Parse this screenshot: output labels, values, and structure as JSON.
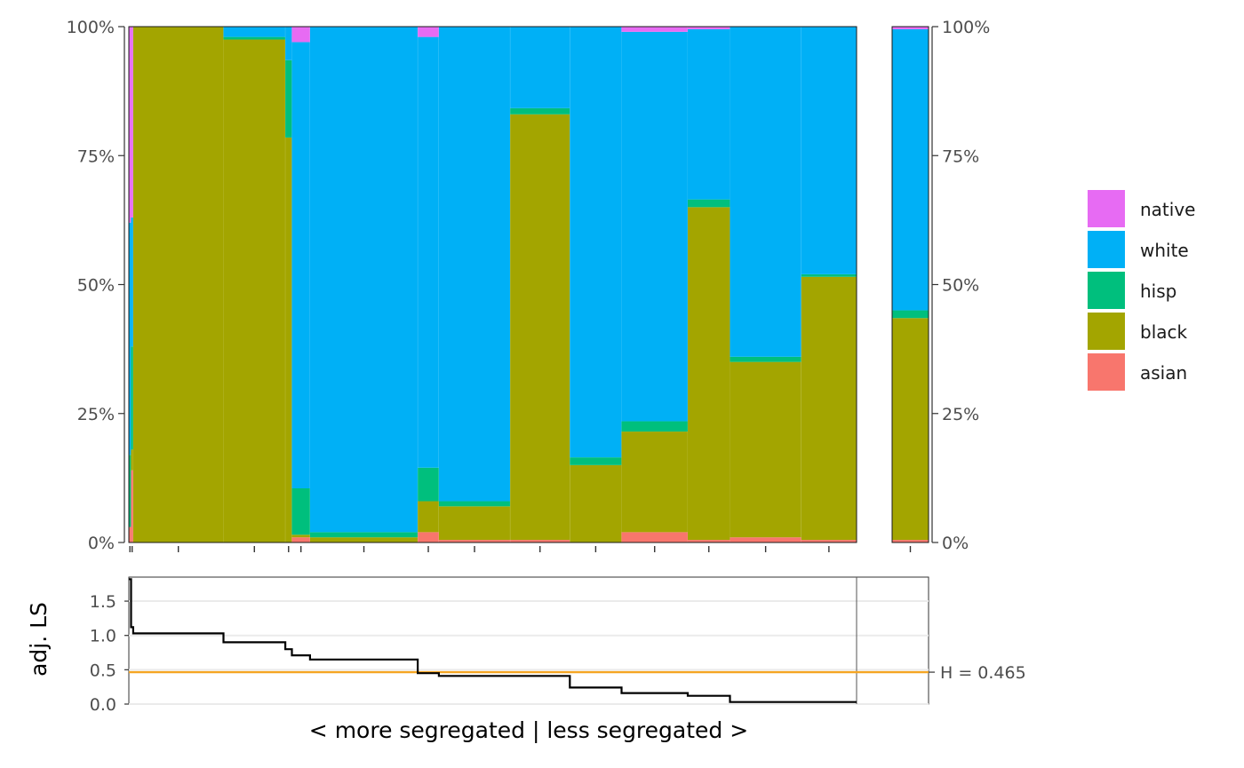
{
  "chart_data": [
    {
      "type": "bar",
      "subtype": "stacked-proportion-mosaic",
      "title": "",
      "xlabel": "",
      "ylabel": "",
      "ylim": [
        0,
        1
      ],
      "y_tick_labels": [
        "0%",
        "25%",
        "50%",
        "75%",
        "100%"
      ],
      "y_ticks": [
        0,
        0.25,
        0.5,
        0.75,
        1
      ],
      "grid": false,
      "legend_position": "right",
      "stack_order": [
        "asian",
        "black",
        "hisp",
        "white",
        "native"
      ],
      "legend": [
        {
          "label": "native",
          "color": "#E76BF3"
        },
        {
          "label": "white",
          "color": "#00B0F6"
        },
        {
          "label": "hisp",
          "color": "#00BF7D"
        },
        {
          "label": "black",
          "color": "#A3A500"
        },
        {
          "label": "asian",
          "color": "#F8766D"
        }
      ],
      "x_extent": [
        0,
        1
      ],
      "units": [
        {
          "x0": 0.0,
          "x1": 0.003,
          "values": {
            "asian": 0.03,
            "black": 0.0,
            "hisp": 0.14,
            "white": 0.45,
            "native": 0.38
          }
        },
        {
          "x0": 0.003,
          "x1": 0.006,
          "values": {
            "asian": 0.14,
            "black": 0.04,
            "hisp": 0.2,
            "white": 0.25,
            "native": 0.37
          }
        },
        {
          "x0": 0.006,
          "x1": 0.13,
          "values": {
            "asian": 0.0,
            "black": 1.0,
            "hisp": 0.0,
            "white": 0.0,
            "native": 0.0
          }
        },
        {
          "x0": 0.13,
          "x1": 0.215,
          "values": {
            "asian": 0.0,
            "black": 0.975,
            "hisp": 0.005,
            "white": 0.02,
            "native": 0.0
          }
        },
        {
          "x0": 0.215,
          "x1": 0.224,
          "values": {
            "asian": 0.0,
            "black": 0.785,
            "hisp": 0.15,
            "white": 0.065,
            "native": 0.0
          }
        },
        {
          "x0": 0.224,
          "x1": 0.249,
          "values": {
            "asian": 0.01,
            "black": 0.005,
            "hisp": 0.09,
            "white": 0.865,
            "native": 0.03
          }
        },
        {
          "x0": 0.249,
          "x1": 0.397,
          "values": {
            "asian": 0.0,
            "black": 0.01,
            "hisp": 0.01,
            "white": 0.98,
            "native": 0.0
          }
        },
        {
          "x0": 0.397,
          "x1": 0.426,
          "values": {
            "asian": 0.02,
            "black": 0.06,
            "hisp": 0.065,
            "white": 0.835,
            "native": 0.02
          }
        },
        {
          "x0": 0.426,
          "x1": 0.524,
          "values": {
            "asian": 0.005,
            "black": 0.065,
            "hisp": 0.01,
            "white": 0.92,
            "native": 0.0
          }
        },
        {
          "x0": 0.524,
          "x1": 0.606,
          "values": {
            "asian": 0.005,
            "black": 0.825,
            "hisp": 0.012,
            "white": 0.158,
            "native": 0.0
          }
        },
        {
          "x0": 0.606,
          "x1": 0.677,
          "values": {
            "asian": 0.0,
            "black": 0.15,
            "hisp": 0.015,
            "white": 0.835,
            "native": 0.0
          }
        },
        {
          "x0": 0.677,
          "x1": 0.768,
          "values": {
            "asian": 0.02,
            "black": 0.195,
            "hisp": 0.02,
            "white": 0.755,
            "native": 0.01
          }
        },
        {
          "x0": 0.768,
          "x1": 0.826,
          "values": {
            "asian": 0.005,
            "black": 0.645,
            "hisp": 0.015,
            "white": 0.33,
            "native": 0.005
          }
        },
        {
          "x0": 0.826,
          "x1": 0.924,
          "values": {
            "asian": 0.01,
            "black": 0.34,
            "hisp": 0.01,
            "white": 0.64,
            "native": 0.0
          }
        },
        {
          "x0": 0.924,
          "x1": 1.0,
          "values": {
            "asian": 0.005,
            "black": 0.51,
            "hisp": 0.005,
            "white": 0.48,
            "native": 0.0
          }
        }
      ],
      "total_bar": {
        "label": "",
        "values": {
          "asian": 0.005,
          "black": 0.43,
          "hisp": 0.015,
          "white": 0.545,
          "native": 0.005
        }
      }
    },
    {
      "type": "line",
      "subtype": "step",
      "xlabel": "< more segregated | less segregated >",
      "ylabel": "adj. LS",
      "ylim": [
        0,
        1.85
      ],
      "y_ticks": [
        0.0,
        0.5,
        1.0,
        1.5
      ],
      "y_tick_labels": [
        "0.0",
        "0.5",
        "1.0",
        "1.5"
      ],
      "grid": "horizontal",
      "x_extent": [
        0,
        1
      ],
      "steps": [
        {
          "x0": 0.0,
          "x1": 0.003,
          "y": 1.82
        },
        {
          "x0": 0.003,
          "x1": 0.006,
          "y": 1.12
        },
        {
          "x0": 0.006,
          "x1": 0.13,
          "y": 1.03
        },
        {
          "x0": 0.13,
          "x1": 0.215,
          "y": 0.9
        },
        {
          "x0": 0.215,
          "x1": 0.224,
          "y": 0.8
        },
        {
          "x0": 0.224,
          "x1": 0.249,
          "y": 0.71
        },
        {
          "x0": 0.249,
          "x1": 0.397,
          "y": 0.65
        },
        {
          "x0": 0.397,
          "x1": 0.426,
          "y": 0.45
        },
        {
          "x0": 0.426,
          "x1": 0.524,
          "y": 0.41
        },
        {
          "x0": 0.524,
          "x1": 0.606,
          "y": 0.41
        },
        {
          "x0": 0.606,
          "x1": 0.677,
          "y": 0.24
        },
        {
          "x0": 0.677,
          "x1": 0.768,
          "y": 0.16
        },
        {
          "x0": 0.768,
          "x1": 0.826,
          "y": 0.12
        },
        {
          "x0": 0.826,
          "x1": 0.924,
          "y": 0.03
        },
        {
          "x0": 0.924,
          "x1": 1.0,
          "y": 0.03
        }
      ],
      "reference_line": {
        "y": 0.465,
        "label": "H = 0.465",
        "color": "#F5A623"
      }
    }
  ]
}
